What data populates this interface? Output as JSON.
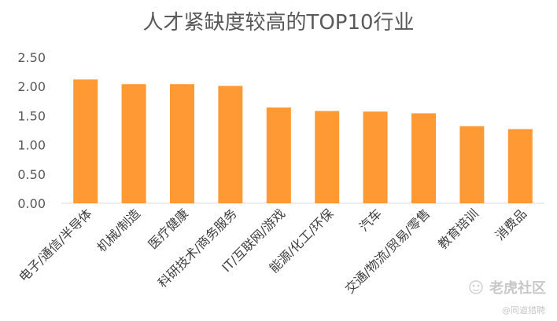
{
  "chart_data": {
    "type": "bar",
    "title": "人才紧缺度较高的TOP10行业",
    "categories": [
      "电子/通信/半导体",
      "机械/制造",
      "医疗健康",
      "科研技术/商务服务",
      "IT/互联网/游戏",
      "能源/化工/环保",
      "汽车",
      "交通/物流/贸易/零售",
      "教育培训",
      "消费品"
    ],
    "values": [
      2.12,
      2.04,
      2.04,
      2.01,
      1.64,
      1.58,
      1.57,
      1.54,
      1.32,
      1.27
    ],
    "ylim": [
      0,
      2.5
    ],
    "yticks": [
      "0.00",
      "0.50",
      "1.00",
      "1.50",
      "2.00",
      "2.50"
    ],
    "xlabel": "",
    "ylabel": "",
    "grid": false,
    "colors": {
      "bar": "#FF9933",
      "axis": "#d9d9d9"
    }
  },
  "watermark": {
    "main": "老虎社区",
    "sub": "@同道猎聘"
  }
}
